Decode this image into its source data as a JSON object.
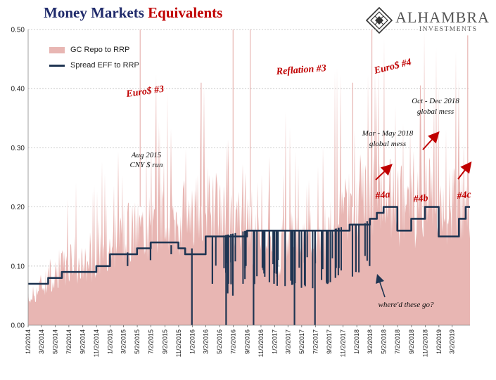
{
  "title": {
    "part1": "Money Markets",
    "part2": "Equivalents"
  },
  "logo": {
    "name": "ALHAMBRA",
    "sub": "INVESTMENTS",
    "icon": "diamond-lattice-icon"
  },
  "colors": {
    "area": "#e8b6b3",
    "line": "#1f3552",
    "annotation_red": "#c00000",
    "title_blue": "#1f2a6b",
    "grid": "#bdbdbd"
  },
  "chart_data": {
    "type": "area",
    "ylim": [
      0,
      0.5
    ],
    "yticks": [
      "0.00",
      "0.10",
      "0.20",
      "0.30",
      "0.40",
      "0.50"
    ],
    "xtick_labels": [
      "1/2/2014",
      "3/2/2014",
      "5/2/2014",
      "7/2/2014",
      "9/2/2014",
      "11/2/2014",
      "1/2/2015",
      "3/2/2015",
      "5/2/2015",
      "7/2/2015",
      "9/2/2015",
      "11/2/2015",
      "1/2/2016",
      "3/2/2016",
      "5/2/2016",
      "7/2/2016",
      "9/2/2016",
      "11/2/2016",
      "1/2/2017",
      "3/2/2017",
      "5/2/2017",
      "7/2/2017",
      "9/2/2017",
      "11/2/2017",
      "1/2/2018",
      "3/2/2018",
      "5/2/2018",
      "7/2/2018",
      "9/2/2018",
      "11/2/2018",
      "1/2/2019",
      "3/2/2019"
    ],
    "grid": "horizontal dotted",
    "legend_position": "top-left",
    "series": [
      {
        "name": "GC Repo to RRP",
        "style": "area",
        "x": [
          "2014-01",
          "2014-03",
          "2014-05",
          "2014-07",
          "2014-09",
          "2014-11",
          "2015-01",
          "2015-03",
          "2015-05",
          "2015-07",
          "2015-09",
          "2015-11",
          "2016-01",
          "2016-03",
          "2016-05",
          "2016-07",
          "2016-09",
          "2016-11",
          "2017-01",
          "2017-03",
          "2017-05",
          "2017-07",
          "2017-09",
          "2017-11",
          "2018-01",
          "2018-03",
          "2018-05",
          "2018-07",
          "2018-09",
          "2018-11",
          "2019-01",
          "2019-03",
          "2019-05"
        ],
        "values": [
          0.05,
          0.08,
          0.11,
          0.12,
          0.12,
          0.13,
          0.16,
          0.18,
          0.19,
          0.2,
          0.22,
          0.2,
          0.24,
          0.24,
          0.22,
          0.22,
          0.2,
          0.16,
          0.14,
          0.17,
          0.17,
          0.18,
          0.18,
          0.22,
          0.23,
          0.26,
          0.25,
          0.24,
          0.23,
          0.25,
          0.24,
          0.23,
          0.25
        ]
      },
      {
        "name": "Spread EFF to RRP",
        "style": "step-line",
        "x": [
          "2014-01",
          "2014-02",
          "2014-04",
          "2014-06",
          "2014-09",
          "2014-11",
          "2015-01",
          "2015-03",
          "2015-05",
          "2015-07",
          "2015-09",
          "2015-11",
          "2015-12",
          "2016-03",
          "2016-05",
          "2016-09",
          "2016-12",
          "2017-03",
          "2017-06",
          "2017-09",
          "2017-12",
          "2018-02",
          "2018-03",
          "2018-04",
          "2018-05",
          "2018-07",
          "2018-09",
          "2018-11",
          "2018-12",
          "2019-01",
          "2019-03",
          "2019-04",
          "2019-05"
        ],
        "values": [
          0.07,
          0.07,
          0.08,
          0.09,
          0.09,
          0.1,
          0.12,
          0.12,
          0.13,
          0.14,
          0.14,
          0.13,
          0.12,
          0.15,
          0.15,
          0.16,
          0.16,
          0.16,
          0.16,
          0.16,
          0.17,
          0.17,
          0.18,
          0.19,
          0.2,
          0.16,
          0.18,
          0.2,
          0.2,
          0.15,
          0.15,
          0.18,
          0.2
        ]
      }
    ],
    "annotations": {
      "euro3": "Euro$ #3",
      "reflation3": "Reflation #3",
      "euro4": "Euro$ #4",
      "aug2015_l1": "Aug 2015",
      "aug2015_l2": "CNY $ run",
      "marmay_l1": "Mar - May 2018",
      "marmay_l2": "global mess",
      "octdec_l1": "Oct - Dec 2018",
      "octdec_l2": "global mess",
      "n4a": "#4a",
      "n4b": "#4b",
      "n4c": "#4c",
      "wheredthese": "where'd these go?"
    }
  }
}
